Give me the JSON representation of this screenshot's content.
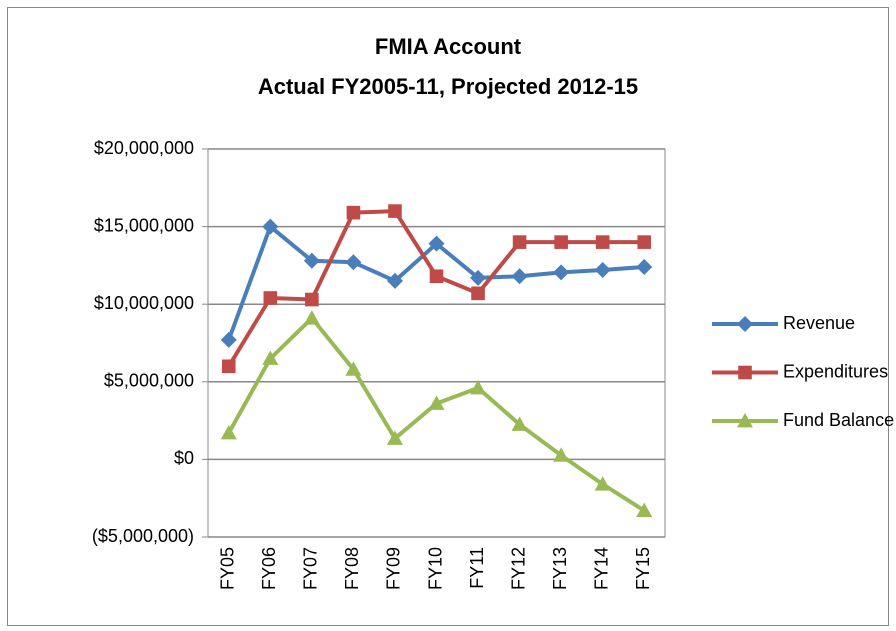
{
  "chart_data": {
    "type": "line",
    "title": "FMIA Account",
    "subtitle": "Actual FY2005-11, Projected 2012-15",
    "categories": [
      "FY05",
      "FY06",
      "FY07",
      "FY08",
      "FY09",
      "FY10",
      "FY11",
      "FY12",
      "FY13",
      "FY14",
      "FY15"
    ],
    "series": [
      {
        "name": "Revenue",
        "color": "#4a7ebb",
        "marker": "diamond",
        "values": [
          7700000,
          15000000,
          12800000,
          12700000,
          11500000,
          13900000,
          11700000,
          11800000,
          12050000,
          12200000,
          12400000
        ]
      },
      {
        "name": "Expenditures",
        "color": "#be4b48",
        "marker": "square",
        "values": [
          6000000,
          10400000,
          10300000,
          15900000,
          16000000,
          11800000,
          10700000,
          14000000,
          14000000,
          14000000,
          14000000
        ]
      },
      {
        "name": "Fund Balance",
        "color": "#98b954",
        "marker": "triangle",
        "values": [
          1700000,
          6500000,
          9100000,
          5800000,
          1350000,
          3600000,
          4600000,
          2250000,
          260000,
          -1600000,
          -3300000
        ]
      }
    ],
    "ylim": [
      -5000000,
      20000000
    ],
    "yticks": [
      {
        "value": -5000000,
        "label": "($5,000,000)"
      },
      {
        "value": 0,
        "label": "$0"
      },
      {
        "value": 5000000,
        "label": "$5,000,000"
      },
      {
        "value": 10000000,
        "label": "$10,000,000"
      },
      {
        "value": 15000000,
        "label": "$15,000,000"
      },
      {
        "value": 20000000,
        "label": "$20,000,000"
      }
    ],
    "grid": true,
    "legend": "right"
  }
}
